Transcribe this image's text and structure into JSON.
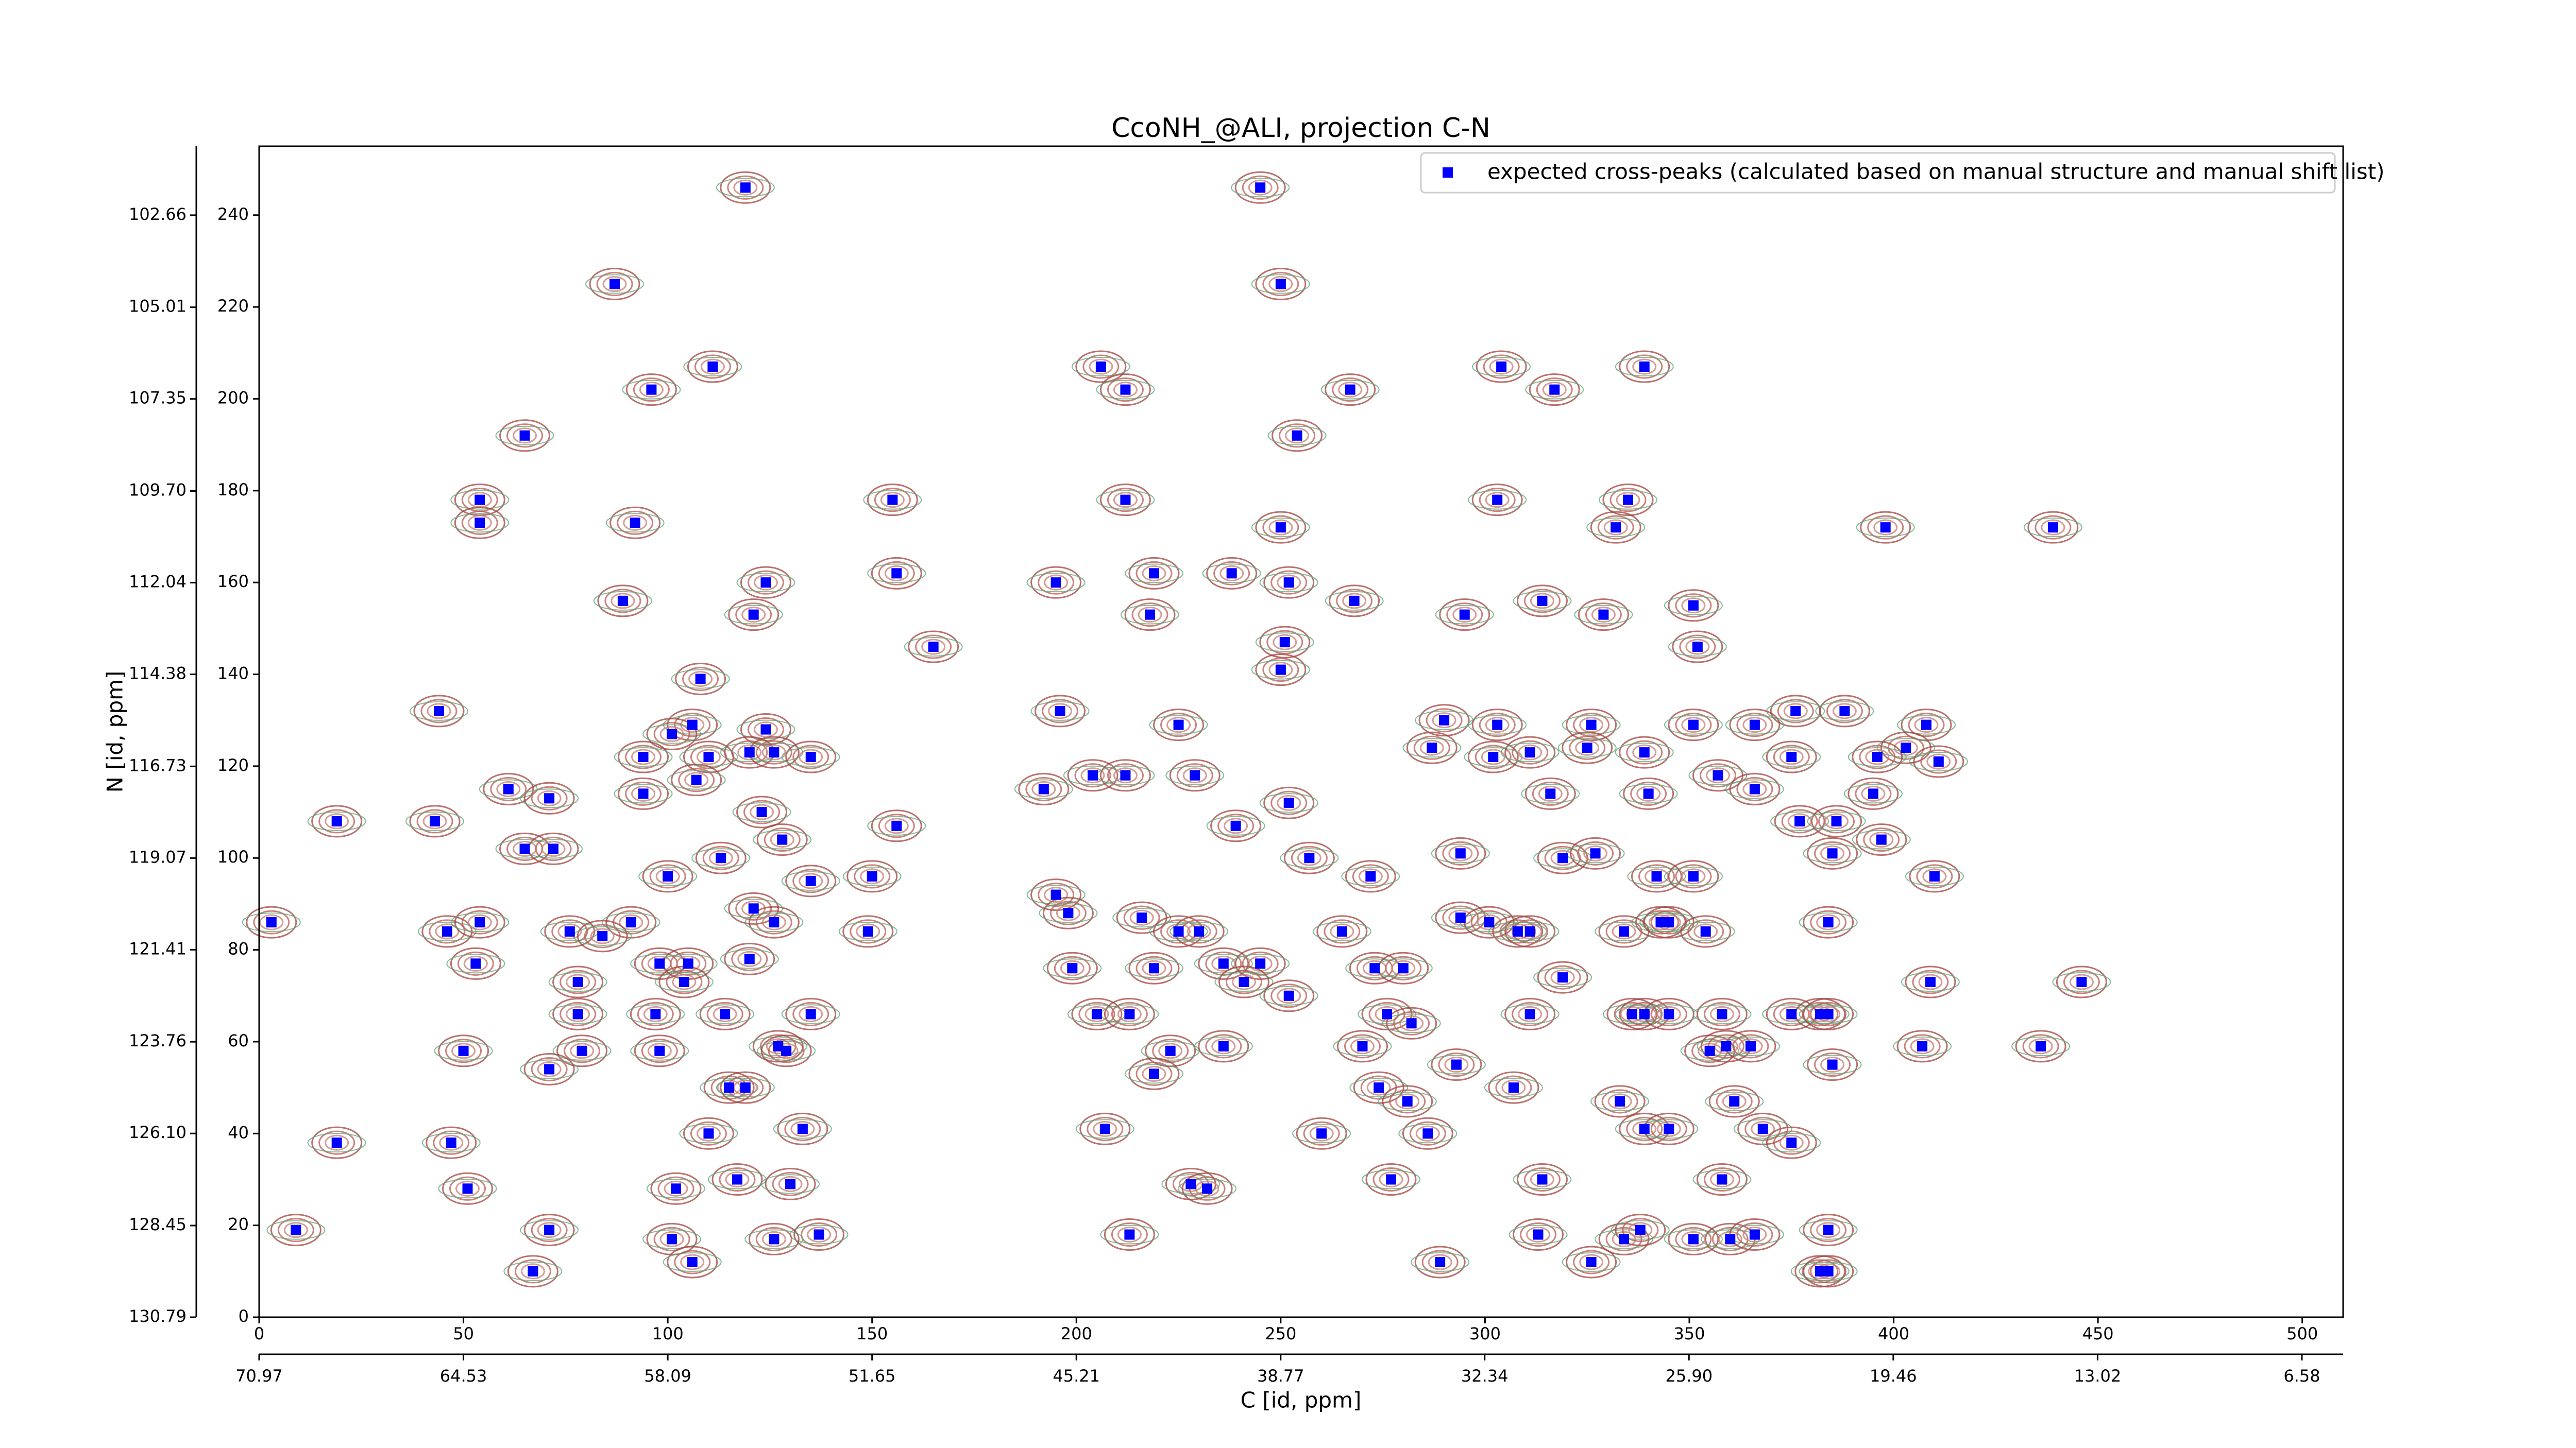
{
  "chart_data": {
    "type": "scatter",
    "title": "CcoNH_@ALI, projection C-N",
    "xlabel": "C [id, ppm]",
    "ylabel": "N [id, ppm]",
    "xlim": [
      0,
      510
    ],
    "xticks": [
      0,
      50,
      100,
      150,
      200,
      250,
      300,
      350,
      400,
      450,
      500
    ],
    "x2lim": [
      70.97,
      5.28
    ],
    "x2ticks": [
      70.97,
      64.53,
      58.09,
      51.65,
      45.21,
      38.77,
      32.34,
      {
        "value": 25.9,
        "label": "25.90"
      },
      19.46,
      13.02,
      6.58
    ],
    "ylim": [
      0,
      255
    ],
    "yticks": [
      0,
      20,
      40,
      60,
      80,
      100,
      120,
      140,
      160,
      180,
      200,
      220,
      240
    ],
    "y2lim": [
      130.79,
      100.9
    ],
    "y2ticks": [
      130.79,
      128.45,
      {
        "value": 126.1,
        "label": "126.10"
      },
      123.76,
      121.41,
      119.07,
      116.73,
      114.38,
      112.04,
      {
        "value": 109.7,
        "label": "109.70"
      },
      107.35,
      105.01,
      102.66
    ],
    "legend": "upper right",
    "series": [
      {
        "name": "expected cross-peaks (calculated based on manual structure and manual shift list)",
        "color": "#0000ff",
        "x": [
          119,
          245,
          87,
          250,
          96,
          111,
          206,
          212,
          267,
          304,
          317,
          339,
          65,
          254,
          54,
          54,
          92,
          155,
          212,
          250,
          303,
          332,
          335,
          398,
          439,
          89,
          124,
          156,
          195,
          219,
          238,
          252,
          268,
          121,
          218,
          295,
          314,
          329,
          351,
          352,
          165,
          251,
          250,
          108,
          44,
          196,
          290,
          106,
          101,
          124,
          225,
          303,
          326,
          376,
          388,
          408,
          366,
          351,
          403,
          411,
          94,
          120,
          126,
          135,
          110,
          287,
          302,
          311,
          325,
          339,
          375,
          396,
          107,
          204,
          212,
          229,
          61,
          94,
          192,
          357,
          316,
          340,
          395,
          366,
          19,
          43,
          71,
          123,
          156,
          239,
          252,
          377,
          386,
          128,
          65,
          72,
          113,
          257,
          294,
          319,
          327,
          397,
          385,
          410,
          100,
          135,
          150,
          342,
          351,
          272,
          3,
          46,
          54,
          91,
          76,
          84,
          121,
          126,
          149,
          195,
          198,
          216,
          225,
          230,
          265,
          294,
          301,
          343,
          345,
          354,
          384,
          308,
          311,
          334,
          53,
          98,
          105,
          120,
          236,
          245,
          273,
          280,
          78,
          104,
          199,
          219,
          241,
          319,
          409,
          446,
          78,
          97,
          114,
          135,
          205,
          213,
          276,
          282,
          311,
          336,
          339,
          345,
          358,
          375,
          382,
          384,
          252,
          50,
          79,
          98,
          127,
          129,
          223,
          236,
          270,
          293,
          355,
          359,
          365,
          385,
          407,
          436,
          71,
          219,
          115,
          119,
          274,
          281,
          307,
          333,
          361,
          133,
          207,
          286,
          260,
          339,
          345,
          368,
          375,
          19,
          47,
          110,
          102,
          117,
          228,
          232,
          277,
          314,
          358,
          51,
          130,
          9,
          71,
          137,
          101,
          126,
          213,
          313,
          334,
          338,
          351,
          360,
          366,
          384,
          106,
          289,
          326,
          67,
          382,
          384
        ],
        "y": [
          246,
          246,
          225,
          225,
          202,
          207,
          207,
          202,
          202,
          207,
          202,
          207,
          192,
          192,
          178,
          173,
          173,
          178,
          178,
          172,
          178,
          172,
          178,
          172,
          172,
          156,
          160,
          162,
          160,
          162,
          162,
          160,
          156,
          153,
          153,
          153,
          156,
          153,
          155,
          146,
          146,
          147,
          141,
          139,
          132,
          132,
          130,
          129,
          127,
          128,
          129,
          129,
          129,
          132,
          132,
          129,
          129,
          129,
          124,
          121,
          122,
          123,
          123,
          122,
          122,
          124,
          122,
          123,
          124,
          123,
          122,
          122,
          117,
          118,
          118,
          118,
          115,
          114,
          115,
          118,
          114,
          114,
          114,
          115,
          108,
          108,
          113,
          110,
          107,
          107,
          112,
          108,
          108,
          104,
          102,
          102,
          100,
          100,
          101,
          100,
          101,
          104,
          101,
          96,
          96,
          95,
          96,
          96,
          96,
          96,
          86,
          84,
          86,
          86,
          84,
          83,
          89,
          86,
          84,
          92,
          88,
          87,
          84,
          84,
          84,
          87,
          86,
          86,
          86,
          84,
          86,
          84,
          84,
          84,
          77,
          77,
          77,
          78,
          77,
          77,
          76,
          76,
          73,
          73,
          76,
          76,
          73,
          74,
          73,
          73,
          66,
          66,
          66,
          66,
          66,
          66,
          66,
          64,
          66,
          66,
          66,
          66,
          66,
          66,
          66,
          66,
          70,
          58,
          58,
          58,
          59,
          58,
          58,
          59,
          59,
          55,
          58,
          59,
          59,
          55,
          59,
          59,
          54,
          53,
          50,
          50,
          50,
          47,
          50,
          47,
          47,
          41,
          41,
          40,
          40,
          41,
          41,
          41,
          38,
          38,
          38,
          40,
          28,
          30,
          29,
          28,
          30,
          30,
          30,
          28,
          29,
          19,
          19,
          18,
          17,
          17,
          18,
          18,
          17,
          19,
          17,
          17,
          18,
          19,
          12,
          12,
          12,
          10,
          10,
          10
        ]
      }
    ]
  }
}
